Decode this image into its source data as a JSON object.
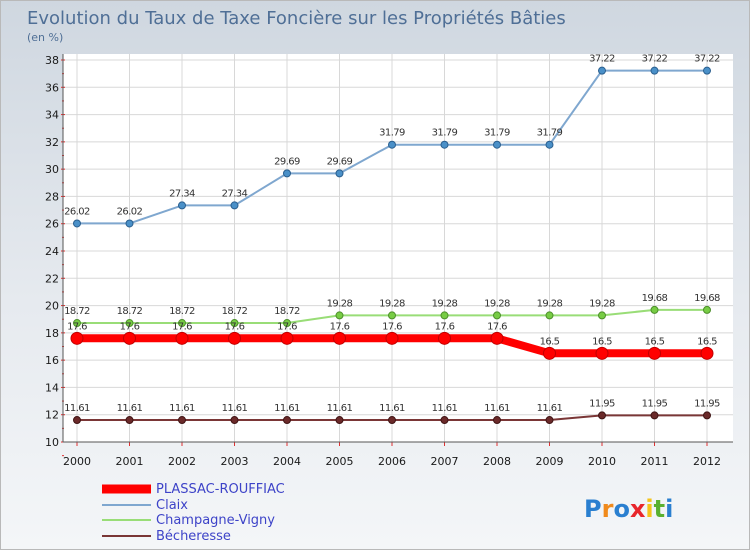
{
  "chart_data": {
    "type": "line",
    "title": "Evolution du Taux de Taxe Foncière sur les Propriétés Bâties",
    "subtitle": "(en %)",
    "xlabel": "",
    "ylabel": "",
    "x": [
      "2000",
      "2001",
      "2002",
      "2003",
      "2004",
      "2005",
      "2006",
      "2007",
      "2008",
      "2009",
      "2010",
      "2011",
      "2012"
    ],
    "ylim": [
      10,
      38
    ],
    "yticks": [
      10,
      12,
      14,
      16,
      18,
      20,
      22,
      24,
      26,
      28,
      30,
      32,
      34,
      36,
      38
    ],
    "grid": true,
    "legend_position": "bottom-left",
    "series": [
      {
        "name": "PLASSAC-ROUFFIAC",
        "color": "#ff0000",
        "values": [
          17.6,
          17.6,
          17.6,
          17.6,
          17.6,
          17.6,
          17.6,
          17.6,
          17.6,
          16.5,
          16.5,
          16.5,
          16.5
        ],
        "labels": [
          "17.6",
          "17.6",
          "17.6",
          "17.6",
          "17.6",
          "17.6",
          "17.6",
          "17.6",
          "17.6",
          "16.5",
          "16.5",
          "16.5",
          "16.5"
        ]
      },
      {
        "name": "Claix",
        "color": "#7fa7cf",
        "values": [
          26.02,
          26.02,
          27.34,
          27.34,
          29.69,
          29.69,
          31.79,
          31.79,
          31.79,
          31.79,
          37.22,
          37.22,
          37.22
        ],
        "labels": [
          "26.02",
          "26.02",
          "27.34",
          "27.34",
          "29.69",
          "29.69",
          "31.79",
          "31.79",
          "31.79",
          "31.79",
          "37.22",
          "37.22",
          "37.22"
        ]
      },
      {
        "name": "Champagne-Vigny",
        "color": "#99dd77",
        "values": [
          18.72,
          18.72,
          18.72,
          18.72,
          18.72,
          19.28,
          19.28,
          19.28,
          19.28,
          19.28,
          19.28,
          19.68,
          19.68
        ],
        "labels": [
          "18.72",
          "18.72",
          "18.72",
          "18.72",
          "18.72",
          "19.28",
          "19.28",
          "19.28",
          "19.28",
          "19.28",
          "19.28",
          "19.68",
          "19.68"
        ]
      },
      {
        "name": "Bécheresse",
        "color": "#7a3636",
        "values": [
          11.61,
          11.61,
          11.61,
          11.61,
          11.61,
          11.61,
          11.61,
          11.61,
          11.61,
          11.61,
          11.95,
          11.95,
          11.95
        ],
        "labels": [
          "11.61",
          "11.61",
          "11.61",
          "11.61",
          "11.61",
          "11.61",
          "11.61",
          "11.61",
          "11.61",
          "11.61",
          "11.95",
          "11.95",
          "11.95"
        ]
      }
    ]
  },
  "branding": {
    "logo_text": "Proxiti",
    "logo_colors": [
      "#2a7fd0",
      "#f08a1c",
      "#2a7fd0",
      "#e8262b",
      "#f5c41a",
      "#5ab030",
      "#2a7fd0"
    ]
  }
}
